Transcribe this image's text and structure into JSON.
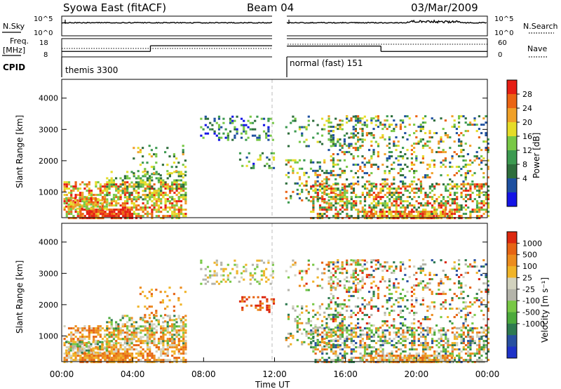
{
  "header": {
    "station": "Syowa East (fitACF)",
    "beam": "Beam 04",
    "date": "03/Mar/2009"
  },
  "labels": {
    "nsky": "N.Sky",
    "nsearch": "N.Search",
    "freq_line1": "Freq.",
    "freq_line2": "[MHz]",
    "nave": "Nave",
    "cpid": "CPID",
    "cpid_first": "themis 3300",
    "cpid_second": "normal (fast) 151",
    "slant_range": "Slant Range [km]",
    "time_ut": "Time UT",
    "power_label": "Power [dB]",
    "velocity_label": "Velocity [m s⁻¹]"
  },
  "chart_data": [
    {
      "panel": "noise",
      "type": "line",
      "left_axis_ticks": [
        "10^5",
        "10^0"
      ],
      "right_axis_ticks": [
        "10^5",
        "10^0"
      ],
      "gap_hours": [
        11.9,
        12.6
      ]
    },
    {
      "panel": "frequency_nave",
      "type": "line",
      "left_axis_ticks": [
        "18",
        "8"
      ],
      "right_axis_ticks": [
        "60",
        "0"
      ],
      "segments": [
        {
          "hours": [
            0.0,
            5.0
          ],
          "freq_mhz": 10.8
        },
        {
          "hours": [
            5.0,
            11.9
          ],
          "freq_mhz": 14.2
        },
        {
          "hours": [
            12.6,
            18.0
          ],
          "freq_mhz": 14.0
        },
        {
          "hours": [
            18.0,
            24.0
          ],
          "freq_mhz": 10.8
        }
      ]
    },
    {
      "panel": "power",
      "type": "heatmap",
      "ylabel": "Slant Range [km]",
      "ylim": [
        180,
        4600
      ],
      "xlim_hours": [
        0,
        24
      ],
      "yticks": [
        1000,
        2000,
        3000,
        4000
      ],
      "colorbar_ticks": [
        "28",
        "24",
        "20",
        "16",
        "12",
        "8",
        "4"
      ],
      "colorbar_range_db": [
        0,
        32
      ]
    },
    {
      "panel": "velocity",
      "type": "heatmap",
      "ylabel": "Slant Range [km]",
      "xlabel": "Time UT",
      "ylim": [
        180,
        4600
      ],
      "xlim_hours": [
        0,
        24
      ],
      "yticks": [
        1000,
        2000,
        3000,
        4000
      ],
      "xticks": [
        "00:00",
        "04:00",
        "08:00",
        "12:00",
        "16:00",
        "20:00",
        "00:00"
      ],
      "colorbar_ticks": [
        "1000",
        "500",
        "100",
        "25",
        "-25",
        "-100",
        "-500",
        "-1000"
      ]
    }
  ],
  "palettes": {
    "power": [
      "#1414e6",
      "#1e50a0",
      "#2e6e3c",
      "#3c9a50",
      "#78c846",
      "#e6dc28",
      "#f0a028",
      "#eb6414",
      "#e61e14"
    ],
    "velocity": [
      "#1e32c8",
      "#2850a0",
      "#2e7a50",
      "#4caa3c",
      "#78c846",
      "#b4b4aa",
      "#d2d2be",
      "#f0b428",
      "#ec8c1e",
      "#e66414",
      "#dc280f"
    ]
  }
}
